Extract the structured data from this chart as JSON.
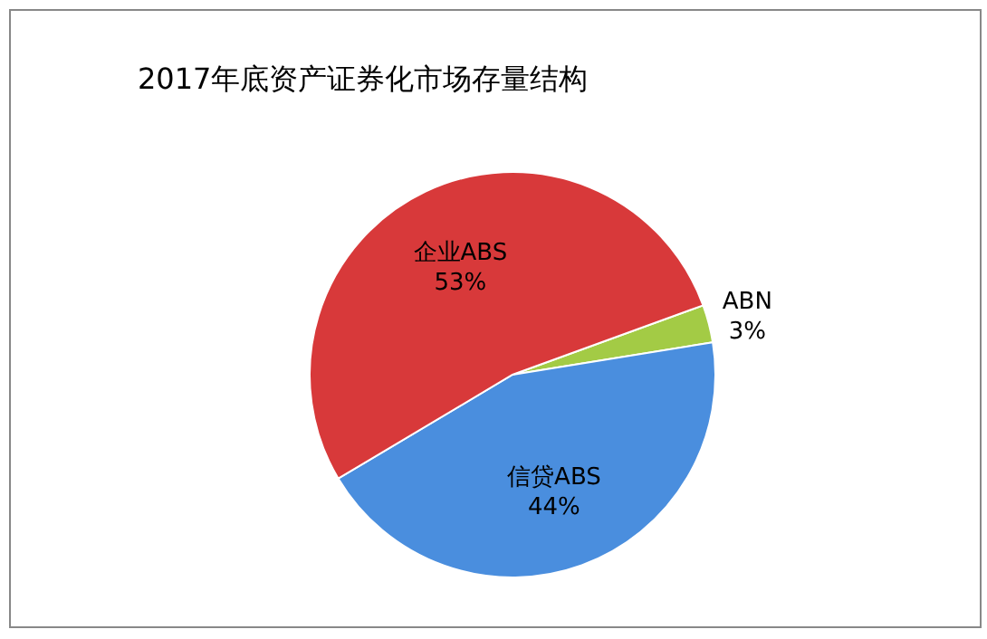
{
  "chart_data": {
    "type": "pie",
    "title": "2017年底资产证券化市场存量结构",
    "categories": [
      "ABN",
      "信贷ABS",
      "企业ABS"
    ],
    "values": [
      3,
      44,
      53
    ],
    "value_labels": [
      "3%",
      "44%",
      "53%"
    ],
    "colors": [
      "#a3cb45",
      "#4a8ede",
      "#d8393a"
    ]
  }
}
